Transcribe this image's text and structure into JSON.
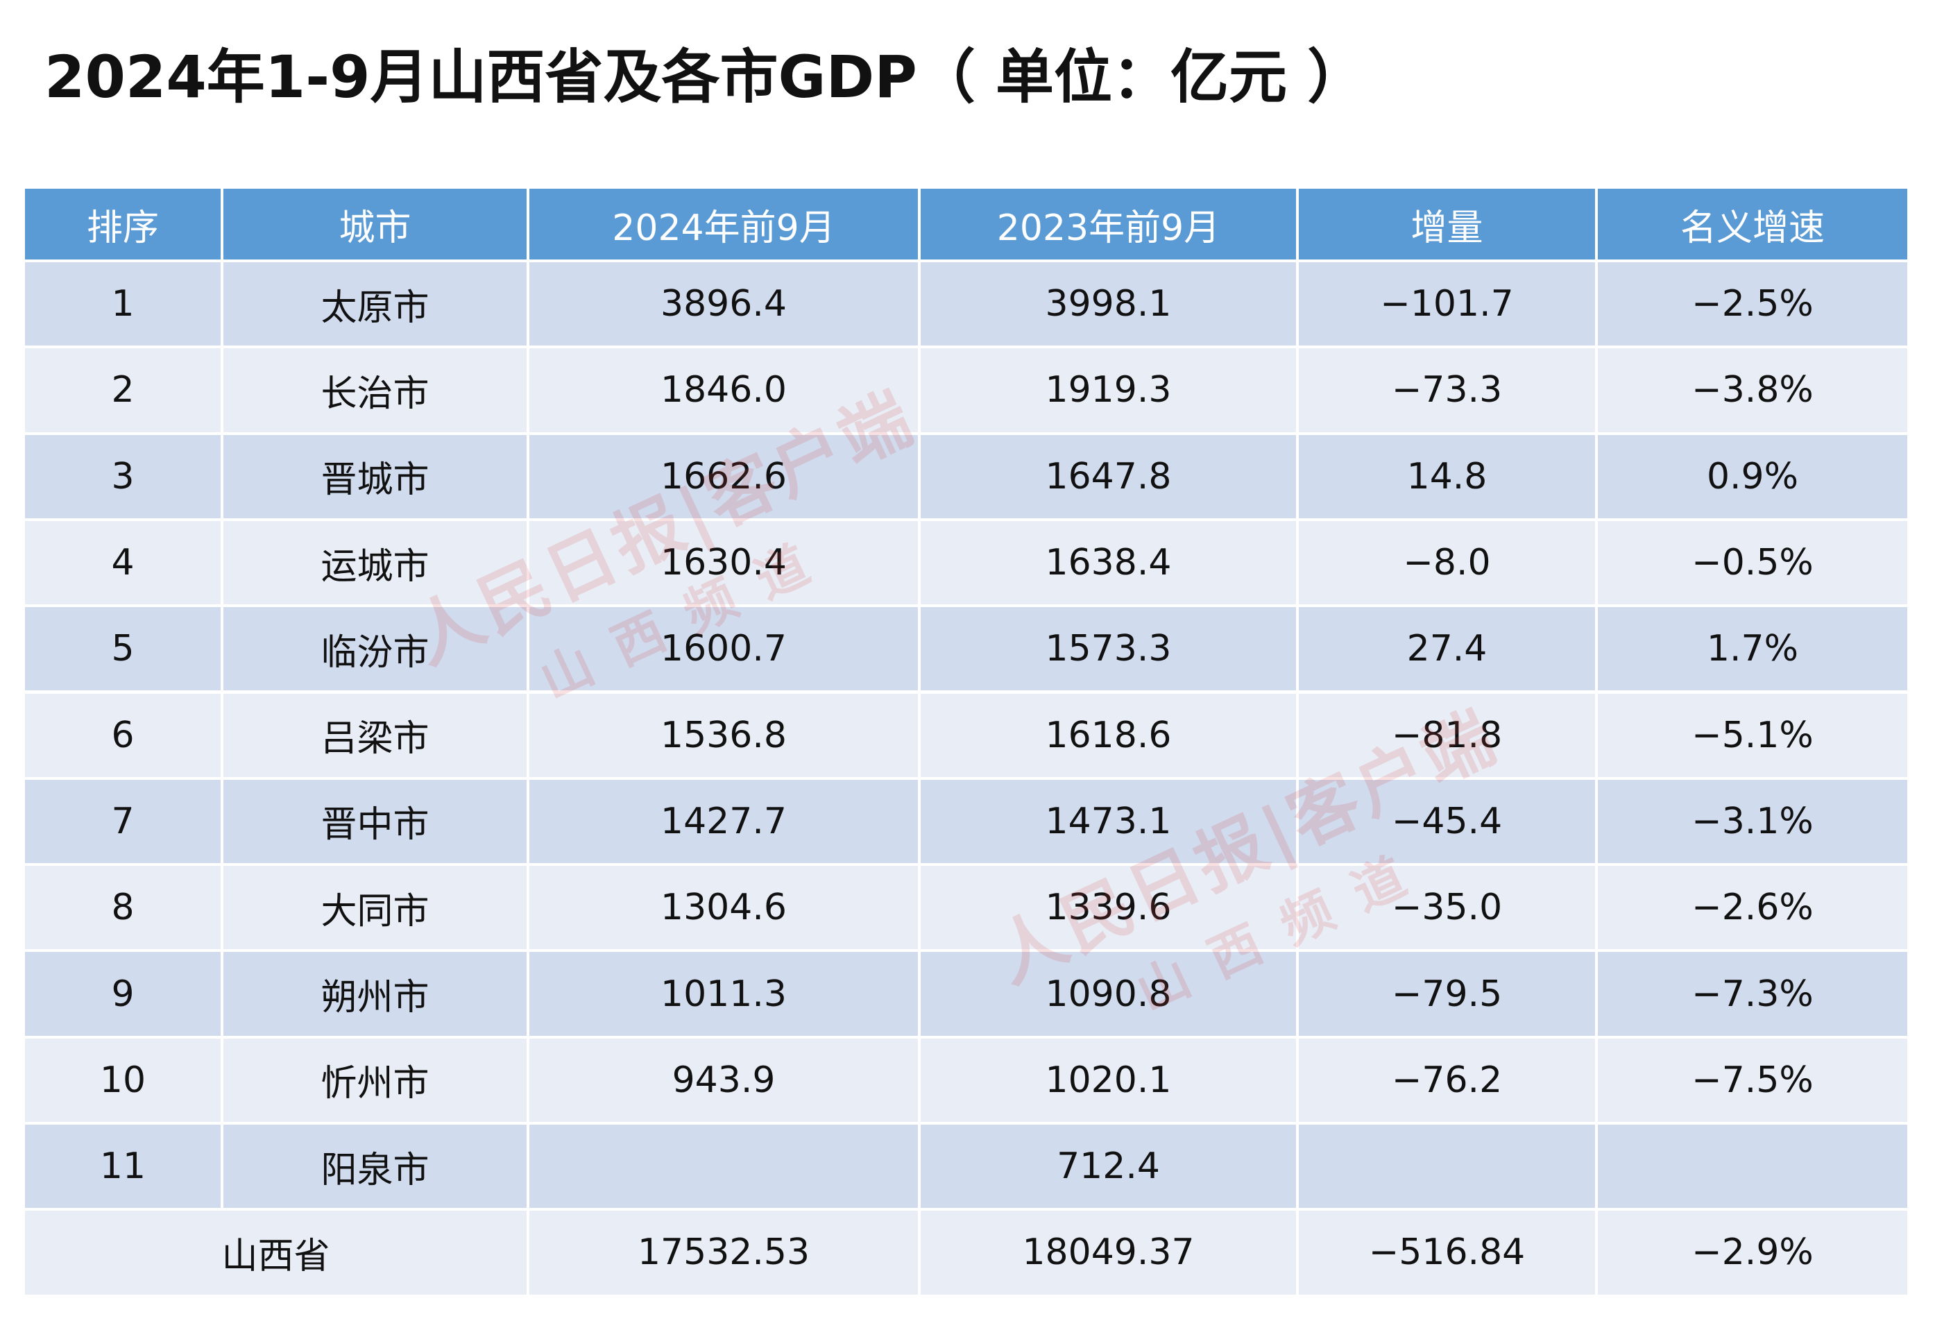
{
  "title": "2024年1-9月山西省及各市GDP（ 单位：亿元 ）",
  "table": {
    "header": [
      "排序",
      "城市",
      "2024年前9月",
      "2023年前9月",
      "增量",
      "名义增速"
    ],
    "rows": [
      [
        "1",
        "太原市",
        "3896.4",
        "3998.1",
        "−101.7",
        "−2.5%"
      ],
      [
        "2",
        "长治市",
        "1846.0",
        "1919.3",
        "−73.3",
        "−3.8%"
      ],
      [
        "3",
        "晋城市",
        "1662.6",
        "1647.8",
        "14.8",
        "0.9%"
      ],
      [
        "4",
        "运城市",
        "1630.4",
        "1638.4",
        "−8.0",
        "−0.5%"
      ],
      [
        "5",
        "临汾市",
        "1600.7",
        "1573.3",
        "27.4",
        "1.7%"
      ],
      [
        "6",
        "吕梁市",
        "1536.8",
        "1618.6",
        "−81.8",
        "−5.1%"
      ],
      [
        "7",
        "晋中市",
        "1427.7",
        "1473.1",
        "−45.4",
        "−3.1%"
      ],
      [
        "8",
        "大同市",
        "1304.6",
        "1339.6",
        "−35.0",
        "−2.6%"
      ],
      [
        "9",
        "朔州市",
        "1011.3",
        "1090.8",
        "−79.5",
        "−7.3%"
      ],
      [
        "10",
        "忻州市",
        "943.9",
        "1020.1",
        "−76.2",
        "−7.5%"
      ],
      [
        "11",
        "阳泉市",
        null,
        "712.4",
        null,
        null
      ]
    ],
    "total": [
      "山西省",
      "17532.53",
      "18049.37",
      "−516.84",
      "−2.9%"
    ]
  },
  "watermarks": [
    "人民日报|客户端",
    "山西频道",
    "人民日报|客户端",
    "山西频道"
  ]
}
